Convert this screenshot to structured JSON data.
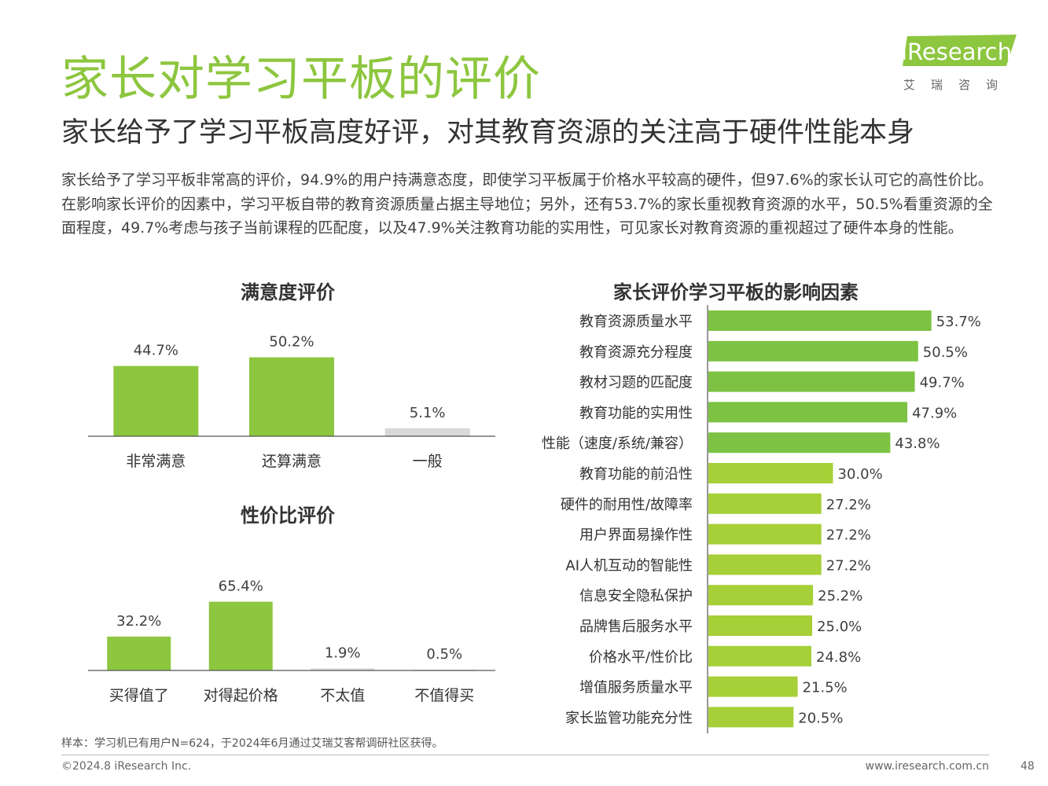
{
  "header": {
    "title": "家长对学习平板的评价",
    "subtitle": "家长给予了学习平板高度好评，对其教育资源的关注高于硬件性能本身"
  },
  "logo": {
    "brand": "iResearch",
    "chinese": "艾瑞咨询"
  },
  "body_text": "家长给予了学习平板非常高的评价，94.9%的用户持满意态度，即使学习平板属于价格水平较高的硬件，但97.6%的家长认可它的高性价比。在影响家长评价的因素中，学习平板自带的教育资源质量占据主导地位；另外，还有53.7%的家长重视教育资源的水平，50.5%看重资源的全面程度，49.7%考虑与孩子当前课程的匹配度，以及47.9%关注教育功能的实用性，可见家长对教育资源的重视超过了硬件本身的性能。",
  "colors": {
    "accent": "#8dc63f",
    "gray_bar": "#d9d9d9",
    "text": "#333333"
  },
  "chart_data": [
    {
      "type": "bar",
      "title": "满意度评价",
      "categories": [
        "非常满意",
        "还算满意",
        "一般"
      ],
      "values": [
        44.7,
        50.2,
        5.1
      ],
      "labels": [
        "44.7%",
        "50.2%",
        "5.1%"
      ],
      "bar_colors": [
        "#8dc63f",
        "#8dc63f",
        "#d9d9d9"
      ],
      "ylim": [
        0,
        60
      ],
      "unit": "%"
    },
    {
      "type": "bar",
      "title": "性价比评价",
      "categories": [
        "买得值了",
        "对得起价格",
        "不太值",
        "不值得买"
      ],
      "values": [
        32.2,
        65.4,
        1.9,
        0.5
      ],
      "labels": [
        "32.2%",
        "65.4%",
        "1.9%",
        "0.5%"
      ],
      "bar_colors": [
        "#8dc63f",
        "#8dc63f",
        "#d9d9d9",
        "#d9d9d9"
      ],
      "ylim": [
        0,
        80
      ],
      "unit": "%"
    },
    {
      "type": "bar",
      "orientation": "horizontal",
      "title": "家长评价学习平板的影响因素",
      "categories": [
        "教育资源质量水平",
        "教育资源充分程度",
        "教材习题的匹配度",
        "教育功能的实用性",
        "性能（速度/系统/兼容）",
        "教育功能的前沿性",
        "硬件的耐用性/故障率",
        "用户界面易操作性",
        "AI人机互动的智能性",
        "信息安全隐私保护",
        "品牌售后服务水平",
        "价格水平/性价比",
        "增值服务质量水平",
        "家长监管功能充分性"
      ],
      "values": [
        53.7,
        50.5,
        49.7,
        47.9,
        43.8,
        30.0,
        27.2,
        27.2,
        27.2,
        25.2,
        25.0,
        24.8,
        21.5,
        20.5
      ],
      "labels": [
        "53.7%",
        "50.5%",
        "49.7%",
        "47.9%",
        "43.8%",
        "30.0%",
        "27.2%",
        "27.2%",
        "27.2%",
        "25.2%",
        "25.0%",
        "24.8%",
        "21.5%",
        "20.5%"
      ],
      "bar_colors": [
        "#7dc242",
        "#7dc242",
        "#7dc242",
        "#7dc242",
        "#7dc242",
        "#a6cf38",
        "#a6cf38",
        "#a6cf38",
        "#a6cf38",
        "#a6cf38",
        "#a6cf38",
        "#a6cf38",
        "#a6cf38",
        "#a6cf38"
      ],
      "xlim": [
        0,
        60
      ],
      "unit": "%"
    }
  ],
  "footer": {
    "note": "样本：学习机已有用户N=624，于2024年6月通过艾瑞艾客帮调研社区获得。",
    "copyright": "©2024.8 iResearch Inc.",
    "website": "www.iresearch.com.cn",
    "page": "48"
  }
}
